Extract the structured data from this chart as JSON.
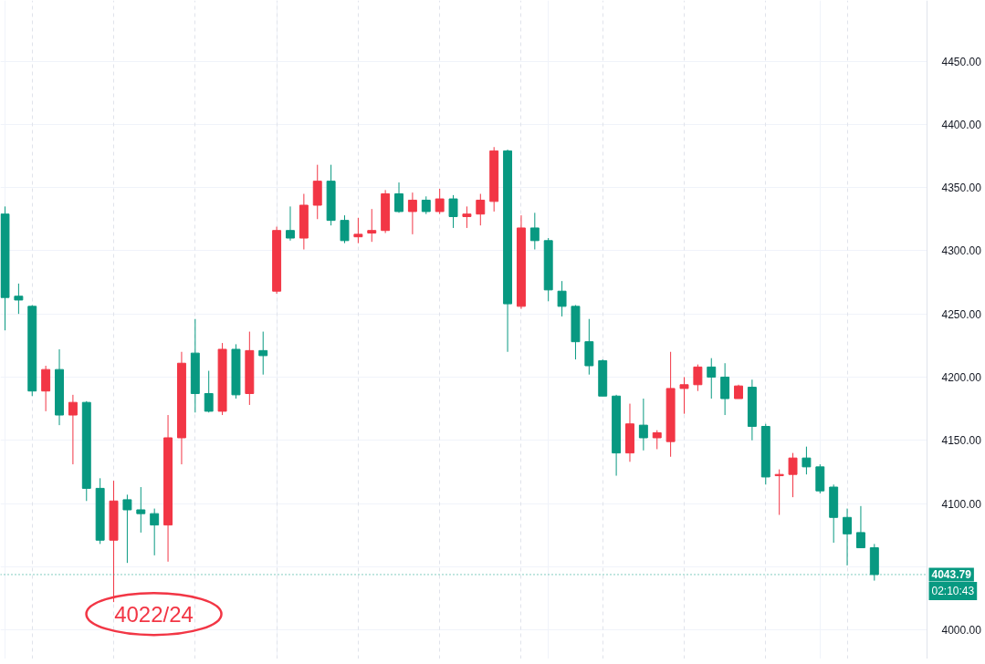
{
  "chart_data": {
    "type": "candlestick",
    "categories": [
      null,
      null,
      null,
      null,
      null,
      null,
      null,
      null,
      null,
      null,
      null,
      null,
      null,
      null,
      null,
      null,
      null,
      null,
      null,
      null,
      null,
      null,
      null,
      null,
      null,
      null,
      null,
      null,
      null,
      null,
      null,
      null,
      null,
      null,
      null,
      null,
      null,
      null,
      null,
      null,
      null,
      null,
      null,
      null,
      null,
      null,
      null,
      null,
      null,
      null,
      null,
      null,
      null,
      null,
      null,
      null,
      null,
      null,
      null,
      null,
      null,
      null,
      null,
      null,
      null
    ],
    "ohlc": [
      [
        4329,
        4335,
        4237,
        4263
      ],
      [
        4264,
        4274,
        4250,
        4261
      ],
      [
        4256,
        4257,
        4185,
        4189
      ],
      [
        4189,
        4209,
        4173,
        4206
      ],
      [
        4206,
        4222,
        4162,
        4170
      ],
      [
        4170,
        4186,
        4131,
        4180
      ],
      [
        4180,
        4181,
        4102,
        4112
      ],
      [
        4112,
        4120,
        4068,
        4071
      ],
      [
        4071,
        4118,
        4022,
        4102
      ],
      [
        4103,
        4107,
        4053,
        4095
      ],
      [
        4095,
        4113,
        4077,
        4092
      ],
      [
        4092,
        4096,
        4059,
        4083
      ],
      [
        4083,
        4170,
        4054,
        4152
      ],
      [
        4152,
        4220,
        4131,
        4211
      ],
      [
        4219,
        4246,
        4172,
        4187
      ],
      [
        4187,
        4205,
        4172,
        4173
      ],
      [
        4173,
        4227,
        4170,
        4222
      ],
      [
        4222,
        4226,
        4183,
        4186
      ],
      [
        4187,
        4236,
        4178,
        4221
      ],
      [
        4221,
        4236,
        4202,
        4217
      ],
      [
        4268,
        4319,
        4266,
        4316
      ],
      [
        4316,
        4335,
        4308,
        4310
      ],
      [
        4310,
        4345,
        4301,
        4336
      ],
      [
        4336,
        4368,
        4325,
        4355
      ],
      [
        4355,
        4368,
        4320,
        4324
      ],
      [
        4324,
        4328,
        4306,
        4308
      ],
      [
        4311,
        4326,
        4306,
        4313
      ],
      [
        4314,
        4333,
        4307,
        4316
      ],
      [
        4316,
        4348,
        4314,
        4345
      ],
      [
        4345,
        4354,
        4330,
        4331
      ],
      [
        4331,
        4346,
        4313,
        4340
      ],
      [
        4340,
        4343,
        4329,
        4331
      ],
      [
        4331,
        4349,
        4329,
        4341
      ],
      [
        4341,
        4344,
        4318,
        4327
      ],
      [
        4327,
        4335,
        4318,
        4329
      ],
      [
        4329,
        4345,
        4320,
        4340
      ],
      [
        4339,
        4382,
        4331,
        4379
      ],
      [
        4379,
        4380,
        4220,
        4258
      ],
      [
        4256,
        4328,
        4254,
        4318
      ],
      [
        4318,
        4330,
        4301,
        4308
      ],
      [
        4308,
        4310,
        4260,
        4269
      ],
      [
        4268,
        4276,
        4248,
        4256
      ],
      [
        4256,
        4257,
        4214,
        4228
      ],
      [
        4228,
        4246,
        4202,
        4209
      ],
      [
        4213,
        4214,
        4185,
        4185
      ],
      [
        4185,
        4186,
        4122,
        4140
      ],
      [
        4140,
        4179,
        4133,
        4163
      ],
      [
        4162,
        4183,
        4142,
        4152
      ],
      [
        4152,
        4158,
        4143,
        4156
      ],
      [
        4149,
        4220,
        4137,
        4191
      ],
      [
        4191,
        4200,
        4171,
        4194
      ],
      [
        4194,
        4210,
        4189,
        4208
      ],
      [
        4208,
        4215,
        4183,
        4200
      ],
      [
        4200,
        4211,
        4170,
        4183
      ],
      [
        4183,
        4194,
        4183,
        4193
      ],
      [
        4192,
        4198,
        4150,
        4161
      ],
      [
        4161,
        4163,
        4115,
        4121
      ],
      [
        4122,
        4127,
        4091,
        4123
      ],
      [
        4123,
        4140,
        4105,
        4136
      ],
      [
        4136,
        4145,
        4123,
        4129
      ],
      [
        4129,
        4131,
        4108,
        4110
      ],
      [
        4113,
        4115,
        4069,
        4089
      ],
      [
        4089,
        4096,
        4051,
        4076
      ],
      [
        4077,
        4098,
        4065,
        4065
      ],
      [
        4065,
        4068,
        4039,
        4043.79
      ]
    ],
    "colors": [
      "#089981",
      "#089981",
      "#089981",
      "#f23645",
      "#089981",
      "#f23645",
      "#089981",
      "#089981",
      "#f23645",
      "#089981",
      "#089981",
      "#089981",
      "#f23645",
      "#f23645",
      "#089981",
      "#089981",
      "#f23645",
      "#089981",
      "#f23645",
      "#089981",
      "#f23645",
      "#089981",
      "#f23645",
      "#f23645",
      "#089981",
      "#089981",
      "#f23645",
      "#f23645",
      "#f23645",
      "#089981",
      "#f23645",
      "#089981",
      "#f23645",
      "#089981",
      "#f23645",
      "#f23645",
      "#f23645",
      "#089981",
      "#f23645",
      "#089981",
      "#089981",
      "#089981",
      "#089981",
      "#089981",
      "#089981",
      "#089981",
      "#f23645",
      "#089981",
      "#f23645",
      "#f23645",
      "#f23645",
      "#f23645",
      "#089981",
      "#089981",
      "#f23645",
      "#089981",
      "#089981",
      "#f23645",
      "#f23645",
      "#089981",
      "#089981",
      "#089981",
      "#089981",
      "#089981",
      "#089981"
    ],
    "ylim": [
      3977,
      4498
    ],
    "yticks": [
      {
        "value": 4000,
        "label": "4000.00"
      },
      {
        "value": 4050,
        "label": null
      },
      {
        "value": 4100,
        "label": "4100.00"
      },
      {
        "value": 4150,
        "label": "4150.00"
      },
      {
        "value": 4200,
        "label": "4200.00"
      },
      {
        "value": 4250,
        "label": "4250.00"
      },
      {
        "value": 4300,
        "label": "4300.00"
      },
      {
        "value": 4350,
        "label": "4350.00"
      },
      {
        "value": 4400,
        "label": "4400.00"
      },
      {
        "value": 4450,
        "label": "4450.00"
      }
    ],
    "ref_lines": [
      {
        "axis": "y",
        "value": 4043.79,
        "label": "4043.79",
        "color": "#089981",
        "line_style": "dotted"
      }
    ],
    "annotations": [
      "4022/24",
      "02:10:43"
    ],
    "tick_labels": "y",
    "grid": true
  }
}
